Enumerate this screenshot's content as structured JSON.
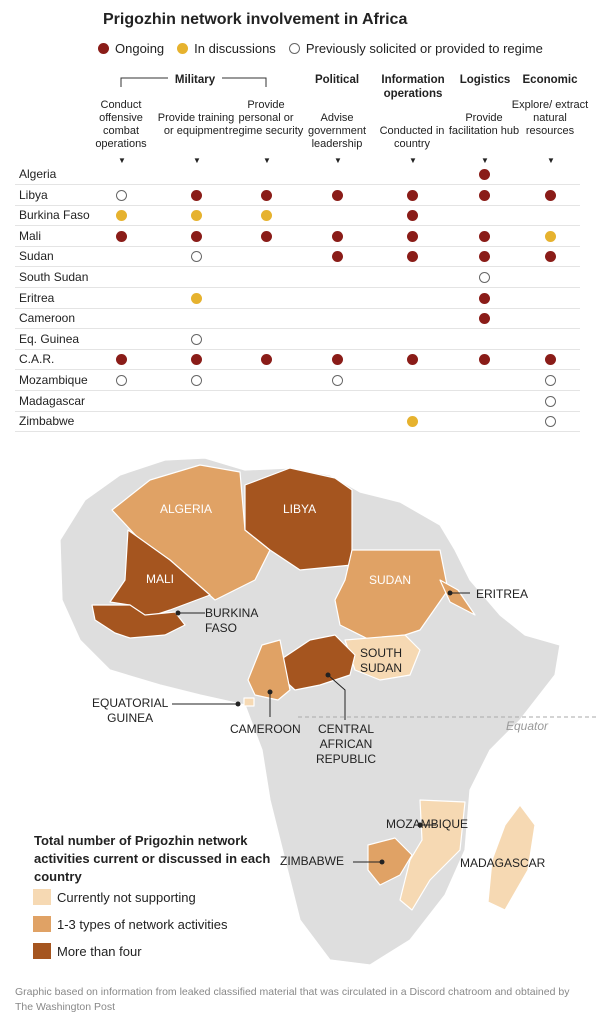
{
  "chart_data": {
    "type": "table",
    "title": "Prigozhin network involvement in Africa",
    "legend": [
      {
        "key": "ongoing",
        "label": "Ongoing",
        "color": "#8a1c18"
      },
      {
        "key": "disc",
        "label": "In discussions",
        "color": "#e6b22e"
      },
      {
        "key": "prev",
        "label": "Previously solicited or provided to regime",
        "color": "#ffffff"
      }
    ],
    "groups": [
      "Military",
      "Political",
      "Information operations",
      "Logistics",
      "Economic"
    ],
    "columns": [
      {
        "group": "Military",
        "label": "Conduct offensive combat operations"
      },
      {
        "group": "Military",
        "label": "Provide training or equipment"
      },
      {
        "group": "Military",
        "label": "Provide personal or regime security"
      },
      {
        "group": "Political",
        "label": "Advise government leadership"
      },
      {
        "group": "Information operations",
        "label": "Conducted in country"
      },
      {
        "group": "Logistics",
        "label": "Provide facilitation hub"
      },
      {
        "group": "Economic",
        "label": "Explore/ extract natural resources"
      }
    ],
    "rows": [
      {
        "country": "Algeria",
        "cells": [
          "",
          "",
          "",
          "",
          "",
          "ongoing",
          ""
        ]
      },
      {
        "country": "Libya",
        "cells": [
          "prev",
          "ongoing",
          "ongoing",
          "ongoing",
          "ongoing",
          "ongoing",
          "ongoing"
        ]
      },
      {
        "country": "Burkina Faso",
        "cells": [
          "disc",
          "disc",
          "disc",
          "",
          "ongoing",
          "",
          ""
        ]
      },
      {
        "country": "Mali",
        "cells": [
          "ongoing",
          "ongoing",
          "ongoing",
          "ongoing",
          "ongoing",
          "ongoing",
          "disc"
        ]
      },
      {
        "country": "Sudan",
        "cells": [
          "",
          "prev",
          "",
          "ongoing",
          "ongoing",
          "ongoing",
          "ongoing"
        ]
      },
      {
        "country": "South Sudan",
        "cells": [
          "",
          "",
          "",
          "",
          "",
          "prev",
          ""
        ]
      },
      {
        "country": "Eritrea",
        "cells": [
          "",
          "disc",
          "",
          "",
          "",
          "ongoing",
          ""
        ]
      },
      {
        "country": "Cameroon",
        "cells": [
          "",
          "",
          "",
          "",
          "",
          "ongoing",
          ""
        ]
      },
      {
        "country": "Eq. Guinea",
        "cells": [
          "",
          "prev",
          "",
          "",
          "",
          "",
          ""
        ]
      },
      {
        "country": "C.A.R.",
        "cells": [
          "ongoing",
          "ongoing",
          "ongoing",
          "ongoing",
          "ongoing",
          "ongoing",
          "ongoing"
        ]
      },
      {
        "country": "Mozambique",
        "cells": [
          "prev",
          "prev",
          "",
          "prev",
          "",
          "",
          "prev"
        ]
      },
      {
        "country": "Madagascar",
        "cells": [
          "",
          "",
          "",
          "",
          "",
          "",
          "prev"
        ]
      },
      {
        "country": "Zimbabwe",
        "cells": [
          "",
          "",
          "",
          "",
          "disc",
          "",
          "prev"
        ]
      }
    ]
  },
  "map": {
    "kicker": "Total number of Prigozhin network activities current or discussed in each country",
    "key": [
      {
        "label": "Currently not supporting",
        "color": "#f6d9b3"
      },
      {
        "label": "1-3 types of network activities",
        "color": "#e0a265"
      },
      {
        "label": "More than four",
        "color": "#a5551f"
      }
    ],
    "labels": {
      "algeria": "ALGERIA",
      "libya": "LIBYA",
      "mali": "MALI",
      "sudan": "SUDAN",
      "burkina": "BURKINA\nFASO",
      "eritrea": "ERITREA",
      "south_sudan": "SOUTH\nSUDAN",
      "eq_guinea": "EQUATORIAL\nGUINEA",
      "cameroon": "CAMEROON",
      "car": "CENTRAL\nAFRICAN\nREPUBLIC",
      "mozambique": "MOZAMBIQUE",
      "zimbabwe": "ZIMBABWE",
      "madagascar": "MADAGASCAR",
      "equator": "Equator"
    }
  },
  "note": "Graphic based on information from leaked classified material that was circulated in a Discord chatroom and obtained by The Washington Post"
}
